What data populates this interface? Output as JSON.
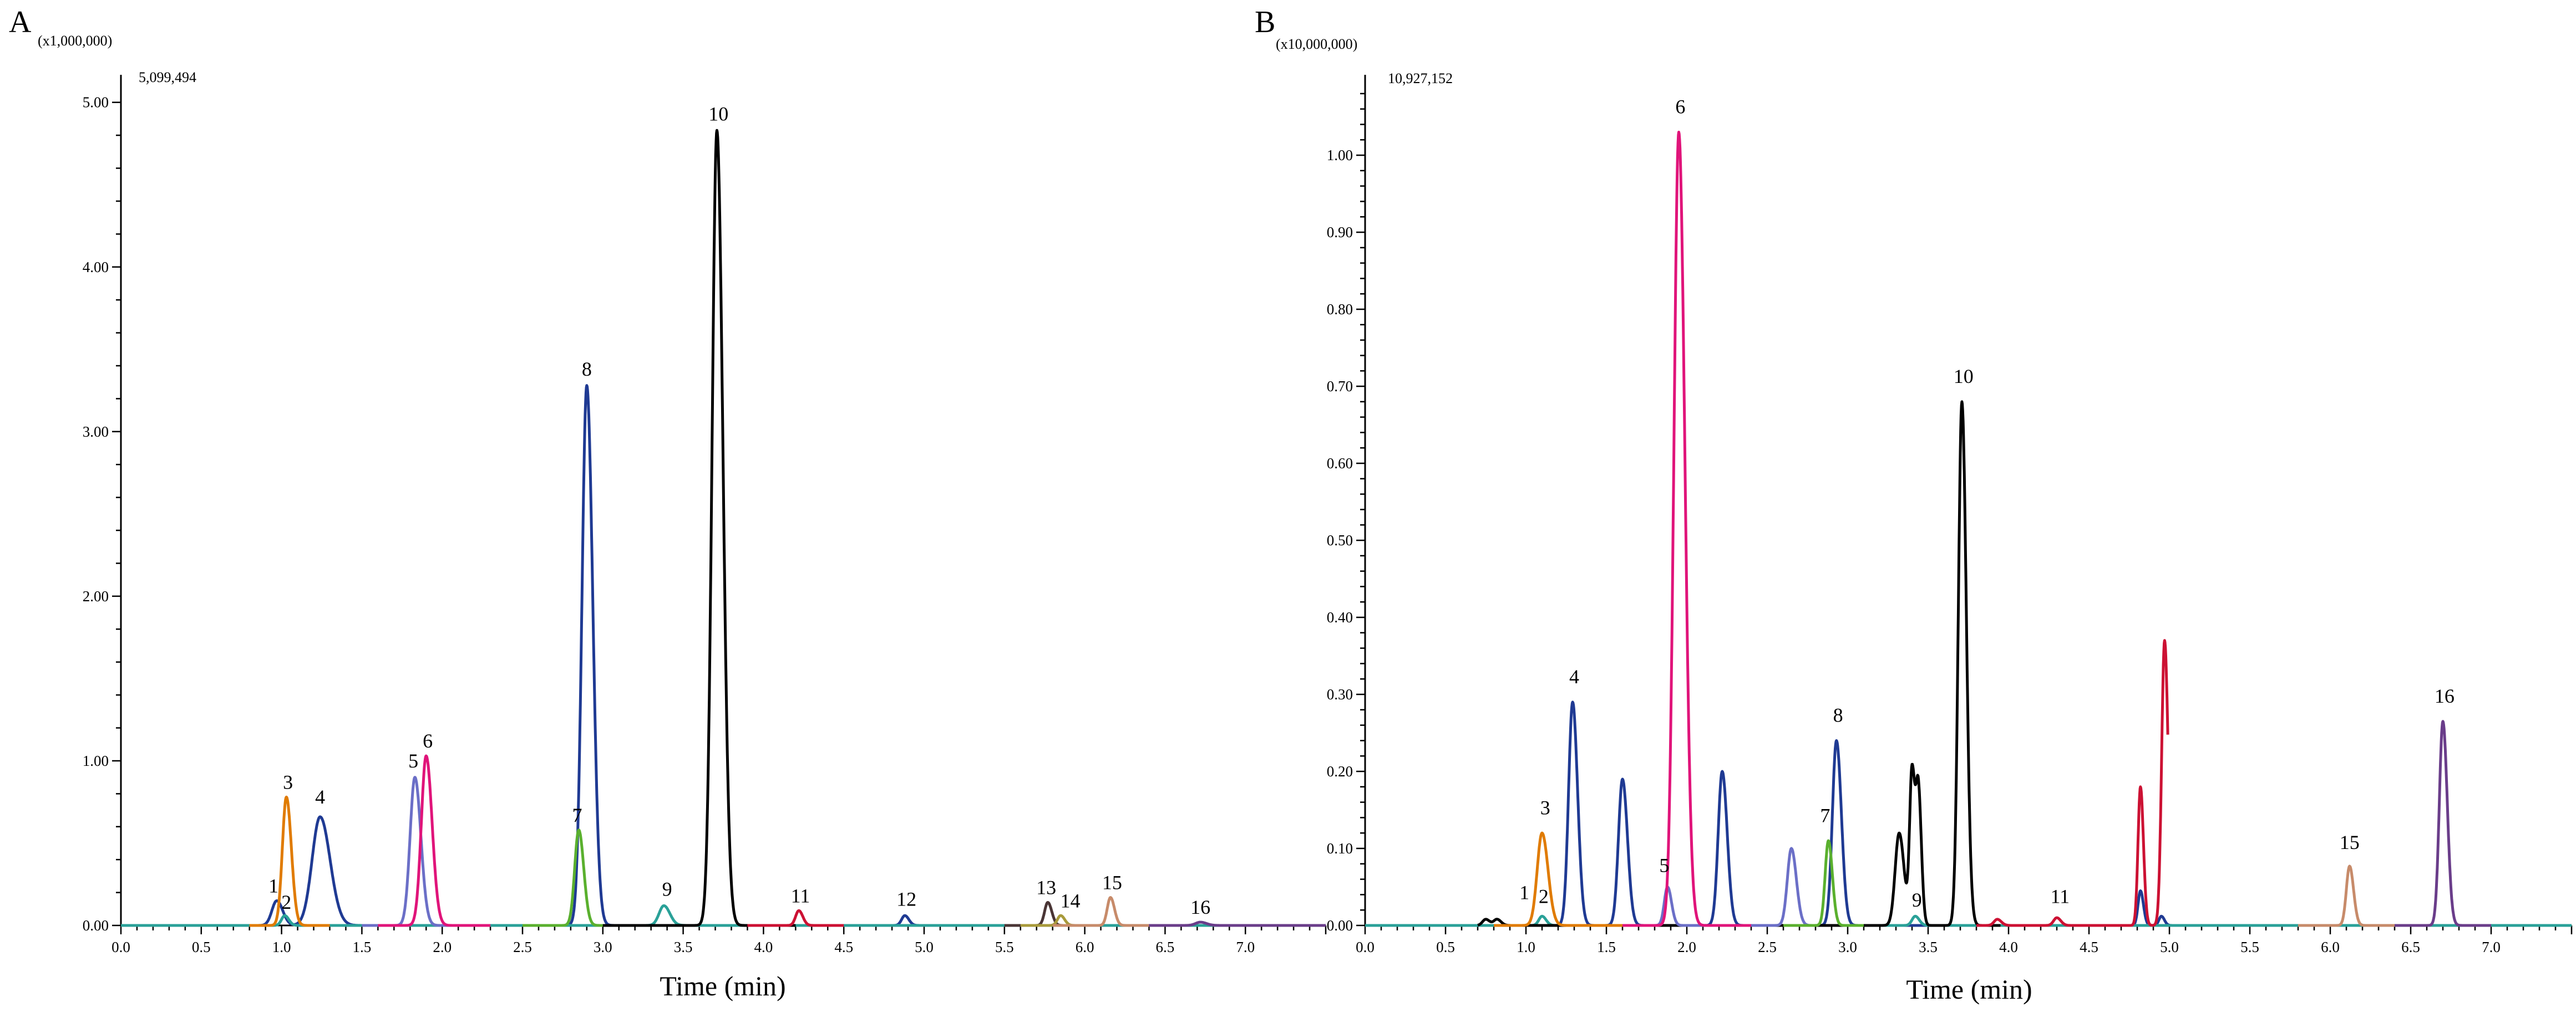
{
  "chart_data": [
    {
      "type": "line",
      "panel": "A",
      "scale_label": "(x1,000,000)",
      "max_label": "5,099,494",
      "xlabel": "Time (min)",
      "ylabel": "",
      "xlim": [
        0.0,
        7.5
      ],
      "ylim": [
        0.0,
        5.1
      ],
      "x_ticks": [
        "0.0",
        "0.5",
        "1.0",
        "1.5",
        "2.0",
        "2.5",
        "3.0",
        "3.5",
        "4.0",
        "4.5",
        "5.0",
        "5.5",
        "6.0",
        "6.5",
        "7.0"
      ],
      "y_ticks": [
        "0.00",
        "1.00",
        "2.00",
        "3.00",
        "4.00",
        "5.00"
      ],
      "series": [
        {
          "color": "#1f3a93",
          "x_range": [
            0.0,
            7.5
          ],
          "peaks": [
            {
              "rt": 0.97,
              "height": 0.15,
              "width": 0.03
            },
            {
              "rt": 1.24,
              "height": 0.66,
              "width": 0.05
            },
            {
              "rt": 2.9,
              "height": 3.28,
              "width": 0.03
            },
            {
              "rt": 4.88,
              "height": 0.06,
              "width": 0.02
            }
          ]
        },
        {
          "color": "#2aa198",
          "x_range": [
            0.0,
            7.5
          ],
          "peaks": [
            {
              "rt": 1.02,
              "height": 0.06,
              "width": 0.02
            },
            {
              "rt": 3.38,
              "height": 0.12,
              "width": 0.03
            }
          ]
        },
        {
          "color": "#e07b00",
          "x_range": [
            0.8,
            1.3
          ],
          "peaks": [
            {
              "rt": 1.03,
              "height": 0.78,
              "width": 0.025
            }
          ]
        },
        {
          "color": "#6b6fc7",
          "x_range": [
            1.5,
            2.3
          ],
          "peaks": [
            {
              "rt": 1.83,
              "height": 0.9,
              "width": 0.03
            }
          ]
        },
        {
          "color": "#e0147a",
          "x_range": [
            1.6,
            2.3
          ],
          "peaks": [
            {
              "rt": 1.9,
              "height": 1.03,
              "width": 0.03
            }
          ]
        },
        {
          "color": "#5ab02e",
          "x_range": [
            2.5,
            3.2
          ],
          "peaks": [
            {
              "rt": 2.85,
              "height": 0.58,
              "width": 0.025
            }
          ]
        },
        {
          "color": "#000000",
          "x_range": [
            3.0,
            4.2
          ],
          "peaks": [
            {
              "rt": 3.71,
              "height": 4.83,
              "width": 0.03
            }
          ]
        },
        {
          "color": "#cc1133",
          "x_range": [
            3.9,
            4.5
          ],
          "peaks": [
            {
              "rt": 4.22,
              "height": 0.09,
              "width": 0.02
            }
          ]
        },
        {
          "color": "#4a3535",
          "x_range": [
            5.5,
            6.0
          ],
          "peaks": [
            {
              "rt": 5.77,
              "height": 0.14,
              "width": 0.02
            }
          ]
        },
        {
          "color": "#a89a3b",
          "x_range": [
            5.6,
            6.0
          ],
          "peaks": [
            {
              "rt": 5.85,
              "height": 0.06,
              "width": 0.02
            }
          ]
        },
        {
          "color": "#c78b6a",
          "x_range": [
            5.8,
            6.6
          ],
          "peaks": [
            {
              "rt": 6.16,
              "height": 0.17,
              "width": 0.02
            }
          ]
        },
        {
          "color": "#6a3d8a",
          "x_range": [
            6.4,
            7.5
          ],
          "peaks": [
            {
              "rt": 6.72,
              "height": 0.02,
              "width": 0.03
            }
          ]
        }
      ],
      "peak_labels": [
        {
          "text": "1",
          "x": 0.95,
          "y": 0.18
        },
        {
          "text": "2",
          "x": 1.03,
          "y": 0.08
        },
        {
          "text": "3",
          "x": 1.04,
          "y": 0.81
        },
        {
          "text": "4",
          "x": 1.24,
          "y": 0.72
        },
        {
          "text": "5",
          "x": 1.82,
          "y": 0.94
        },
        {
          "text": "6",
          "x": 1.91,
          "y": 1.06
        },
        {
          "text": "7",
          "x": 2.84,
          "y": 0.61
        },
        {
          "text": "8",
          "x": 2.9,
          "y": 3.32
        },
        {
          "text": "9",
          "x": 3.4,
          "y": 0.16
        },
        {
          "text": "10",
          "x": 3.72,
          "y": 4.87
        },
        {
          "text": "11",
          "x": 4.23,
          "y": 0.12
        },
        {
          "text": "12",
          "x": 4.89,
          "y": 0.1
        },
        {
          "text": "13",
          "x": 5.76,
          "y": 0.17
        },
        {
          "text": "14",
          "x": 5.91,
          "y": 0.09
        },
        {
          "text": "15",
          "x": 6.17,
          "y": 0.2
        },
        {
          "text": "16",
          "x": 6.72,
          "y": 0.05
        }
      ]
    },
    {
      "type": "line",
      "panel": "B",
      "scale_label": "(x10,000,000)",
      "max_label": "10,927,152",
      "xlabel": "Time (min)",
      "ylabel": "",
      "xlim": [
        0.0,
        7.5
      ],
      "ylim": [
        0.0,
        1.09
      ],
      "x_ticks": [
        "0.0",
        "0.5",
        "1.0",
        "1.5",
        "2.0",
        "2.5",
        "3.0",
        "3.5",
        "4.0",
        "4.5",
        "5.0",
        "5.5",
        "6.0",
        "6.5",
        "7.0"
      ],
      "y_ticks": [
        "0.00",
        "0.10",
        "0.20",
        "0.30",
        "0.40",
        "0.50",
        "0.60",
        "0.70",
        "0.80",
        "0.90",
        "1.00"
      ],
      "series": [
        {
          "color": "#1f3a93",
          "x_range": [
            0.0,
            7.5
          ],
          "peaks": [
            {
              "rt": 1.29,
              "height": 0.29,
              "width": 0.025
            },
            {
              "rt": 1.6,
              "height": 0.19,
              "width": 0.025
            },
            {
              "rt": 2.22,
              "height": 0.2,
              "width": 0.025
            },
            {
              "rt": 2.93,
              "height": 0.24,
              "width": 0.025
            },
            {
              "rt": 4.82,
              "height": 0.045,
              "width": 0.015
            },
            {
              "rt": 4.95,
              "height": 0.012,
              "width": 0.015
            }
          ]
        },
        {
          "color": "#2aa198",
          "x_range": [
            0.0,
            7.5
          ],
          "peaks": [
            {
              "rt": 1.1,
              "height": 0.012,
              "width": 0.02
            },
            {
              "rt": 3.42,
              "height": 0.012,
              "width": 0.02
            }
          ]
        },
        {
          "color": "#000000",
          "x_range": [
            0.7,
            3.95
          ],
          "peaks": [
            {
              "rt": 0.75,
              "height": 0.008,
              "width": 0.02
            },
            {
              "rt": 0.82,
              "height": 0.008,
              "width": 0.02
            },
            {
              "rt": 3.32,
              "height": 0.12,
              "width": 0.025
            },
            {
              "rt": 3.4,
              "height": 0.2,
              "width": 0.015
            },
            {
              "rt": 3.44,
              "height": 0.17,
              "width": 0.015
            },
            {
              "rt": 3.71,
              "height": 0.68,
              "width": 0.022
            }
          ]
        },
        {
          "color": "#e07b00",
          "x_range": [
            0.8,
            1.8
          ],
          "peaks": [
            {
              "rt": 1.1,
              "height": 0.12,
              "width": 0.03
            }
          ]
        },
        {
          "color": "#6b6fc7",
          "x_range": [
            1.7,
            2.8
          ],
          "peaks": [
            {
              "rt": 1.88,
              "height": 0.05,
              "width": 0.02
            },
            {
              "rt": 2.65,
              "height": 0.1,
              "width": 0.025
            }
          ]
        },
        {
          "color": "#e0147a",
          "x_range": [
            1.6,
            2.4
          ],
          "peaks": [
            {
              "rt": 1.95,
              "height": 1.03,
              "width": 0.03
            }
          ]
        },
        {
          "color": "#5ab02e",
          "x_range": [
            2.6,
            3.1
          ],
          "peaks": [
            {
              "rt": 2.88,
              "height": 0.11,
              "width": 0.02
            }
          ]
        },
        {
          "color": "#cc1133",
          "x_range": [
            3.8,
            4.99
          ],
          "peaks": [
            {
              "rt": 3.93,
              "height": 0.008,
              "width": 0.02
            },
            {
              "rt": 4.3,
              "height": 0.01,
              "width": 0.02
            },
            {
              "rt": 4.82,
              "height": 0.18,
              "width": 0.015
            },
            {
              "rt": 4.97,
              "height": 0.37,
              "width": 0.018
            }
          ]
        },
        {
          "color": "#c78b6a",
          "x_range": [
            5.8,
            6.5
          ],
          "peaks": [
            {
              "rt": 6.12,
              "height": 0.077,
              "width": 0.02
            }
          ]
        },
        {
          "color": "#6a3d8a",
          "x_range": [
            6.4,
            7.0
          ],
          "peaks": [
            {
              "rt": 6.7,
              "height": 0.265,
              "width": 0.022
            }
          ]
        }
      ],
      "peak_labels": [
        {
          "text": "1",
          "x": 0.99,
          "y": 0.03
        },
        {
          "text": "2",
          "x": 1.11,
          "y": 0.025
        },
        {
          "text": "3",
          "x": 1.12,
          "y": 0.14
        },
        {
          "text": "4",
          "x": 1.3,
          "y": 0.31
        },
        {
          "text": "5",
          "x": 1.86,
          "y": 0.065
        },
        {
          "text": "6",
          "x": 1.96,
          "y": 1.05
        },
        {
          "text": "7",
          "x": 2.86,
          "y": 0.13
        },
        {
          "text": "8",
          "x": 2.94,
          "y": 0.26
        },
        {
          "text": "9",
          "x": 3.43,
          "y": 0.02
        },
        {
          "text": "10",
          "x": 3.72,
          "y": 0.7
        },
        {
          "text": "11",
          "x": 4.32,
          "y": 0.025
        },
        {
          "text": "15",
          "x": 6.12,
          "y": 0.095
        },
        {
          "text": "16",
          "x": 6.71,
          "y": 0.285
        }
      ]
    }
  ],
  "panels": {
    "a": {
      "letter": "A",
      "scale": "(x1,000,000)",
      "max": "5,099,494",
      "xtitle": "Time (min)"
    },
    "b": {
      "letter": "B",
      "scale": "(x10,000,000)",
      "max": "10,927,152",
      "xtitle": "Time (min)"
    }
  }
}
